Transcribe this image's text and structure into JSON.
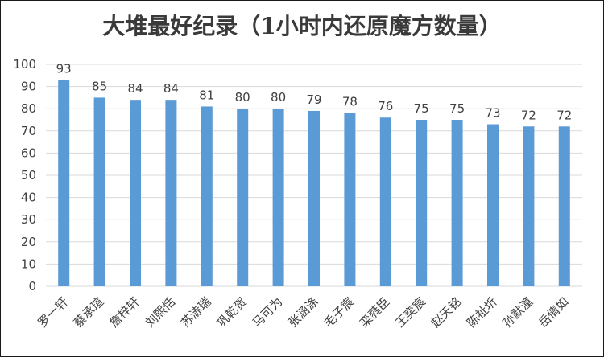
{
  "chart_data": {
    "type": "bar",
    "title": "大堆最好纪录（1小时内还原魔方数量）",
    "xlabel": "",
    "ylabel": "",
    "categories": [
      "罗一轩",
      "蔡承瑄",
      "詹梓轩",
      "刘熙恬",
      "苏浾瑞",
      "巩乾贺",
      "马可为",
      "张涵涤",
      "毛子宸",
      "栾蕤臣",
      "王奕宸",
      "赵天铭",
      "陈祉圻",
      "孙默潼",
      "岳倩如"
    ],
    "values": [
      93,
      85,
      84,
      84,
      81,
      80,
      80,
      79,
      78,
      76,
      75,
      75,
      73,
      72,
      72
    ],
    "ylim": [
      0,
      100
    ],
    "yticks": [
      0,
      10,
      20,
      30,
      40,
      50,
      60,
      70,
      80,
      90,
      100
    ],
    "data_labels": true,
    "grid": true,
    "legend": "none",
    "colors": {
      "bar": "#5b9bd5",
      "grid": "#d9d9d9",
      "text": "#404040"
    }
  }
}
